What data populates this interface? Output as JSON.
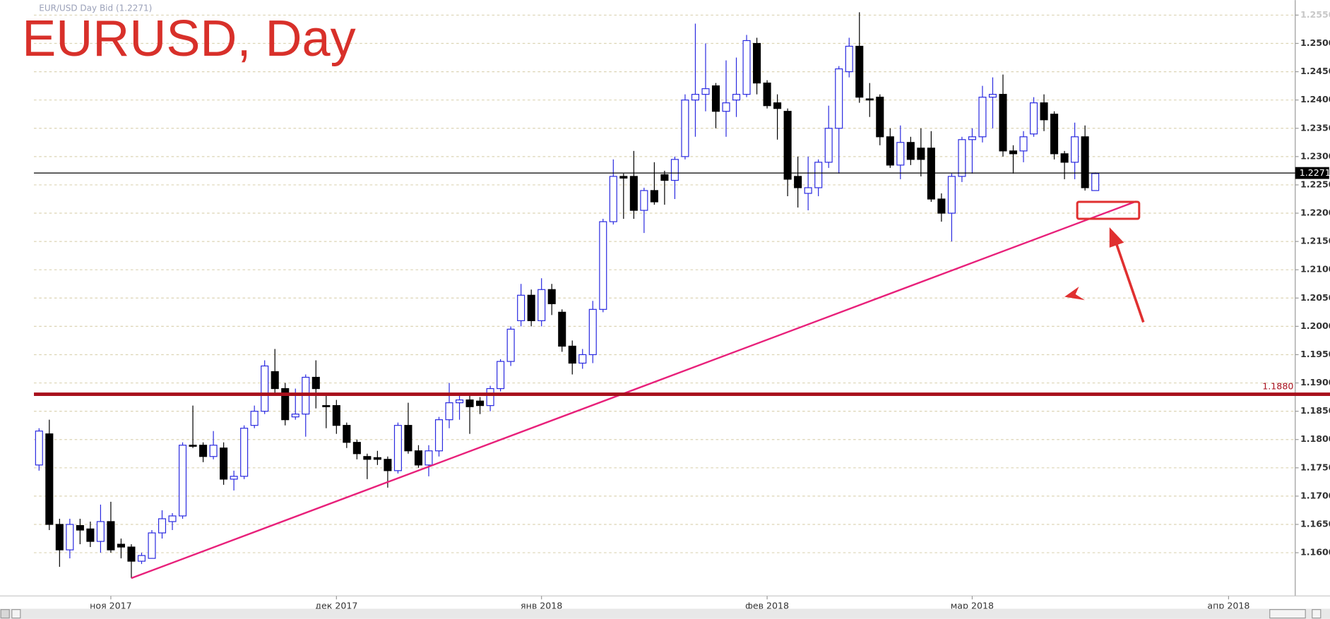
{
  "chart_data": {
    "type": "candlestick",
    "header": "EUR/USD Day Bid (1.2271)",
    "title": "EURUSD, Day",
    "title_color": "#d8302a",
    "up_color": "#2a2ae0",
    "down_color": "#000000",
    "grid": true,
    "open": [
      1.1755,
      1.181,
      1.165,
      1.1605,
      1.1648,
      1.1642,
      1.162,
      1.1655,
      1.1615,
      1.161,
      1.1585,
      1.159,
      1.1635,
      1.1655,
      1.1665,
      1.179,
      1.179,
      1.177,
      1.1785,
      1.173,
      1.1735,
      1.1825,
      1.185,
      1.192,
      1.189,
      1.184,
      1.1845,
      1.191,
      1.186,
      1.186,
      1.1825,
      1.1795,
      1.177,
      1.1768,
      1.1765,
      1.1745,
      1.1825,
      1.178,
      1.1755,
      1.178,
      1.1835,
      1.1865,
      1.187,
      1.1868,
      1.186,
      1.189,
      1.1938,
      1.201,
      1.2055,
      1.201,
      1.2065,
      1.2025,
      1.1965,
      1.1935,
      1.195,
      1.203,
      1.2185,
      1.2265,
      1.2265,
      1.2205,
      1.224,
      1.2268,
      1.2258,
      1.23,
      1.24,
      1.241,
      1.2425,
      1.238,
      1.24,
      1.241,
      1.25,
      1.243,
      1.2395,
      1.238,
      1.2265,
      1.2235,
      1.2245,
      1.229,
      1.235,
      1.245,
      1.2495,
      1.2402,
      1.2405,
      1.2335,
      1.2285,
      1.2325,
      1.2315,
      1.2315,
      1.2225,
      1.22,
      1.2265,
      1.233,
      1.2335,
      1.2405,
      1.241,
      1.231,
      1.231,
      1.234,
      1.2395,
      1.2375,
      1.2305,
      1.229,
      1.2335,
      1.224
    ],
    "high": [
      1.182,
      1.1835,
      1.166,
      1.166,
      1.166,
      1.1655,
      1.1685,
      1.169,
      1.1625,
      1.1615,
      1.16,
      1.164,
      1.1675,
      1.167,
      1.1795,
      1.186,
      1.1795,
      1.1815,
      1.1795,
      1.1745,
      1.1825,
      1.186,
      1.194,
      1.196,
      1.19,
      1.189,
      1.1915,
      1.194,
      1.188,
      1.187,
      1.183,
      1.18,
      1.1775,
      1.178,
      1.177,
      1.183,
      1.1865,
      1.179,
      1.179,
      1.184,
      1.19,
      1.188,
      1.188,
      1.1875,
      1.1895,
      1.1942,
      1.2,
      1.2075,
      1.2065,
      1.2085,
      1.2075,
      1.203,
      1.1975,
      1.196,
      1.2045,
      1.219,
      1.2295,
      1.227,
      1.231,
      1.2245,
      1.229,
      1.2275,
      1.23,
      1.241,
      1.2535,
      1.25,
      1.243,
      1.247,
      1.2475,
      1.2515,
      1.251,
      1.2435,
      1.241,
      1.2385,
      1.23,
      1.23,
      1.2295,
      1.239,
      1.246,
      1.251,
      1.2555,
      1.243,
      1.241,
      1.235,
      1.2355,
      1.2335,
      1.235,
      1.2345,
      1.2235,
      1.227,
      1.2335,
      1.235,
      1.2425,
      1.244,
      1.2445,
      1.232,
      1.2345,
      1.2405,
      1.241,
      1.238,
      1.231,
      1.236,
      1.2355,
      1.2272
    ],
    "low": [
      1.1745,
      1.164,
      1.1575,
      1.159,
      1.1615,
      1.161,
      1.16,
      1.16,
      1.159,
      1.1555,
      1.158,
      1.159,
      1.1625,
      1.164,
      1.166,
      1.1785,
      1.176,
      1.1765,
      1.172,
      1.171,
      1.173,
      1.182,
      1.1845,
      1.188,
      1.1825,
      1.1835,
      1.1805,
      1.1855,
      1.182,
      1.181,
      1.1785,
      1.1765,
      1.173,
      1.1755,
      1.1715,
      1.174,
      1.1775,
      1.175,
      1.1735,
      1.177,
      1.182,
      1.1835,
      1.181,
      1.1845,
      1.185,
      1.1885,
      1.193,
      1.2,
      1.2,
      1.2,
      1.202,
      1.1955,
      1.1915,
      1.1925,
      1.1935,
      1.2025,
      1.218,
      1.219,
      1.219,
      1.2165,
      1.2215,
      1.2215,
      1.2225,
      1.2295,
      1.2335,
      1.238,
      1.235,
      1.2335,
      1.237,
      1.2405,
      1.241,
      1.2385,
      1.233,
      1.223,
      1.221,
      1.2205,
      1.223,
      1.228,
      1.227,
      1.244,
      1.2395,
      1.237,
      1.232,
      1.228,
      1.226,
      1.2285,
      1.2265,
      1.222,
      1.2185,
      1.215,
      1.2255,
      1.227,
      1.2325,
      1.235,
      1.23,
      1.227,
      1.229,
      1.2335,
      1.2345,
      1.2295,
      1.226,
      1.226,
      1.224,
      1.224
    ],
    "close": [
      1.1815,
      1.165,
      1.1605,
      1.165,
      1.164,
      1.162,
      1.1655,
      1.1605,
      1.161,
      1.1585,
      1.1595,
      1.1635,
      1.166,
      1.1665,
      1.179,
      1.1788,
      1.177,
      1.179,
      1.173,
      1.1735,
      1.182,
      1.185,
      1.193,
      1.189,
      1.1835,
      1.1845,
      1.191,
      1.189,
      1.1858,
      1.1825,
      1.1795,
      1.1775,
      1.1765,
      1.1765,
      1.1745,
      1.1825,
      1.178,
      1.1755,
      1.178,
      1.1835,
      1.1865,
      1.187,
      1.1858,
      1.186,
      1.189,
      1.1938,
      1.1995,
      1.2055,
      1.201,
      1.2065,
      1.204,
      1.1965,
      1.1935,
      1.195,
      1.203,
      1.2185,
      1.2265,
      1.2262,
      1.2205,
      1.224,
      1.222,
      1.2258,
      1.2295,
      1.24,
      1.241,
      1.242,
      1.238,
      1.2395,
      1.241,
      1.2505,
      1.243,
      1.239,
      1.2385,
      1.226,
      1.2245,
      1.2245,
      1.229,
      1.235,
      1.2455,
      1.2495,
      1.2405,
      1.24,
      1.2335,
      1.2285,
      1.2325,
      1.2295,
      1.2295,
      1.2225,
      1.22,
      1.2265,
      1.233,
      1.2335,
      1.2405,
      1.241,
      1.231,
      1.2305,
      1.2335,
      1.2395,
      1.2365,
      1.2305,
      1.229,
      1.2335,
      1.2245,
      1.227
    ],
    "xlim": [
      -0.5,
      122.5
    ],
    "xticks": [
      {
        "value": 7,
        "label": "ноя 2017"
      },
      {
        "value": 29,
        "label": "дек 2017"
      },
      {
        "value": 49,
        "label": "янв 2018"
      },
      {
        "value": 71,
        "label": "фев 2018"
      },
      {
        "value": 91,
        "label": "мар 2018"
      },
      {
        "value": 116,
        "label": "апр 2018"
      }
    ],
    "ylim": [
      1.1528,
      1.2572
    ],
    "yticks": [
      {
        "value": 1.16,
        "label": "1.1600"
      },
      {
        "value": 1.165,
        "label": "1.1650"
      },
      {
        "value": 1.17,
        "label": "1.1700"
      },
      {
        "value": 1.175,
        "label": "1.1750"
      },
      {
        "value": 1.18,
        "label": "1.1800"
      },
      {
        "value": 1.185,
        "label": "1.1850"
      },
      {
        "value": 1.19,
        "label": "1.1900"
      },
      {
        "value": 1.195,
        "label": "1.1950"
      },
      {
        "value": 1.2,
        "label": "1.2000"
      },
      {
        "value": 1.205,
        "label": "1.2050"
      },
      {
        "value": 1.21,
        "label": "1.2100"
      },
      {
        "value": 1.215,
        "label": "1.2150"
      },
      {
        "value": 1.22,
        "label": "1.2200"
      },
      {
        "value": 1.225,
        "label": "1.2250"
      },
      {
        "value": 1.23,
        "label": "1.2300"
      },
      {
        "value": 1.235,
        "label": "1.2350"
      },
      {
        "value": 1.24,
        "label": "1.2400"
      },
      {
        "value": 1.245,
        "label": "1.2450"
      },
      {
        "value": 1.25,
        "label": "1.2500"
      },
      {
        "value": 1.255,
        "label": "1.2550"
      }
    ],
    "hlines": [
      {
        "value": 1.2271,
        "label": "1.2271",
        "color": "#000000"
      },
      {
        "value": 1.188,
        "label": "1.1880",
        "color": "#a8101c"
      }
    ],
    "trendline": {
      "start": [
        9,
        1.1555
      ],
      "end": [
        107,
        1.2221
      ],
      "color": "#e8207a"
    }
  }
}
